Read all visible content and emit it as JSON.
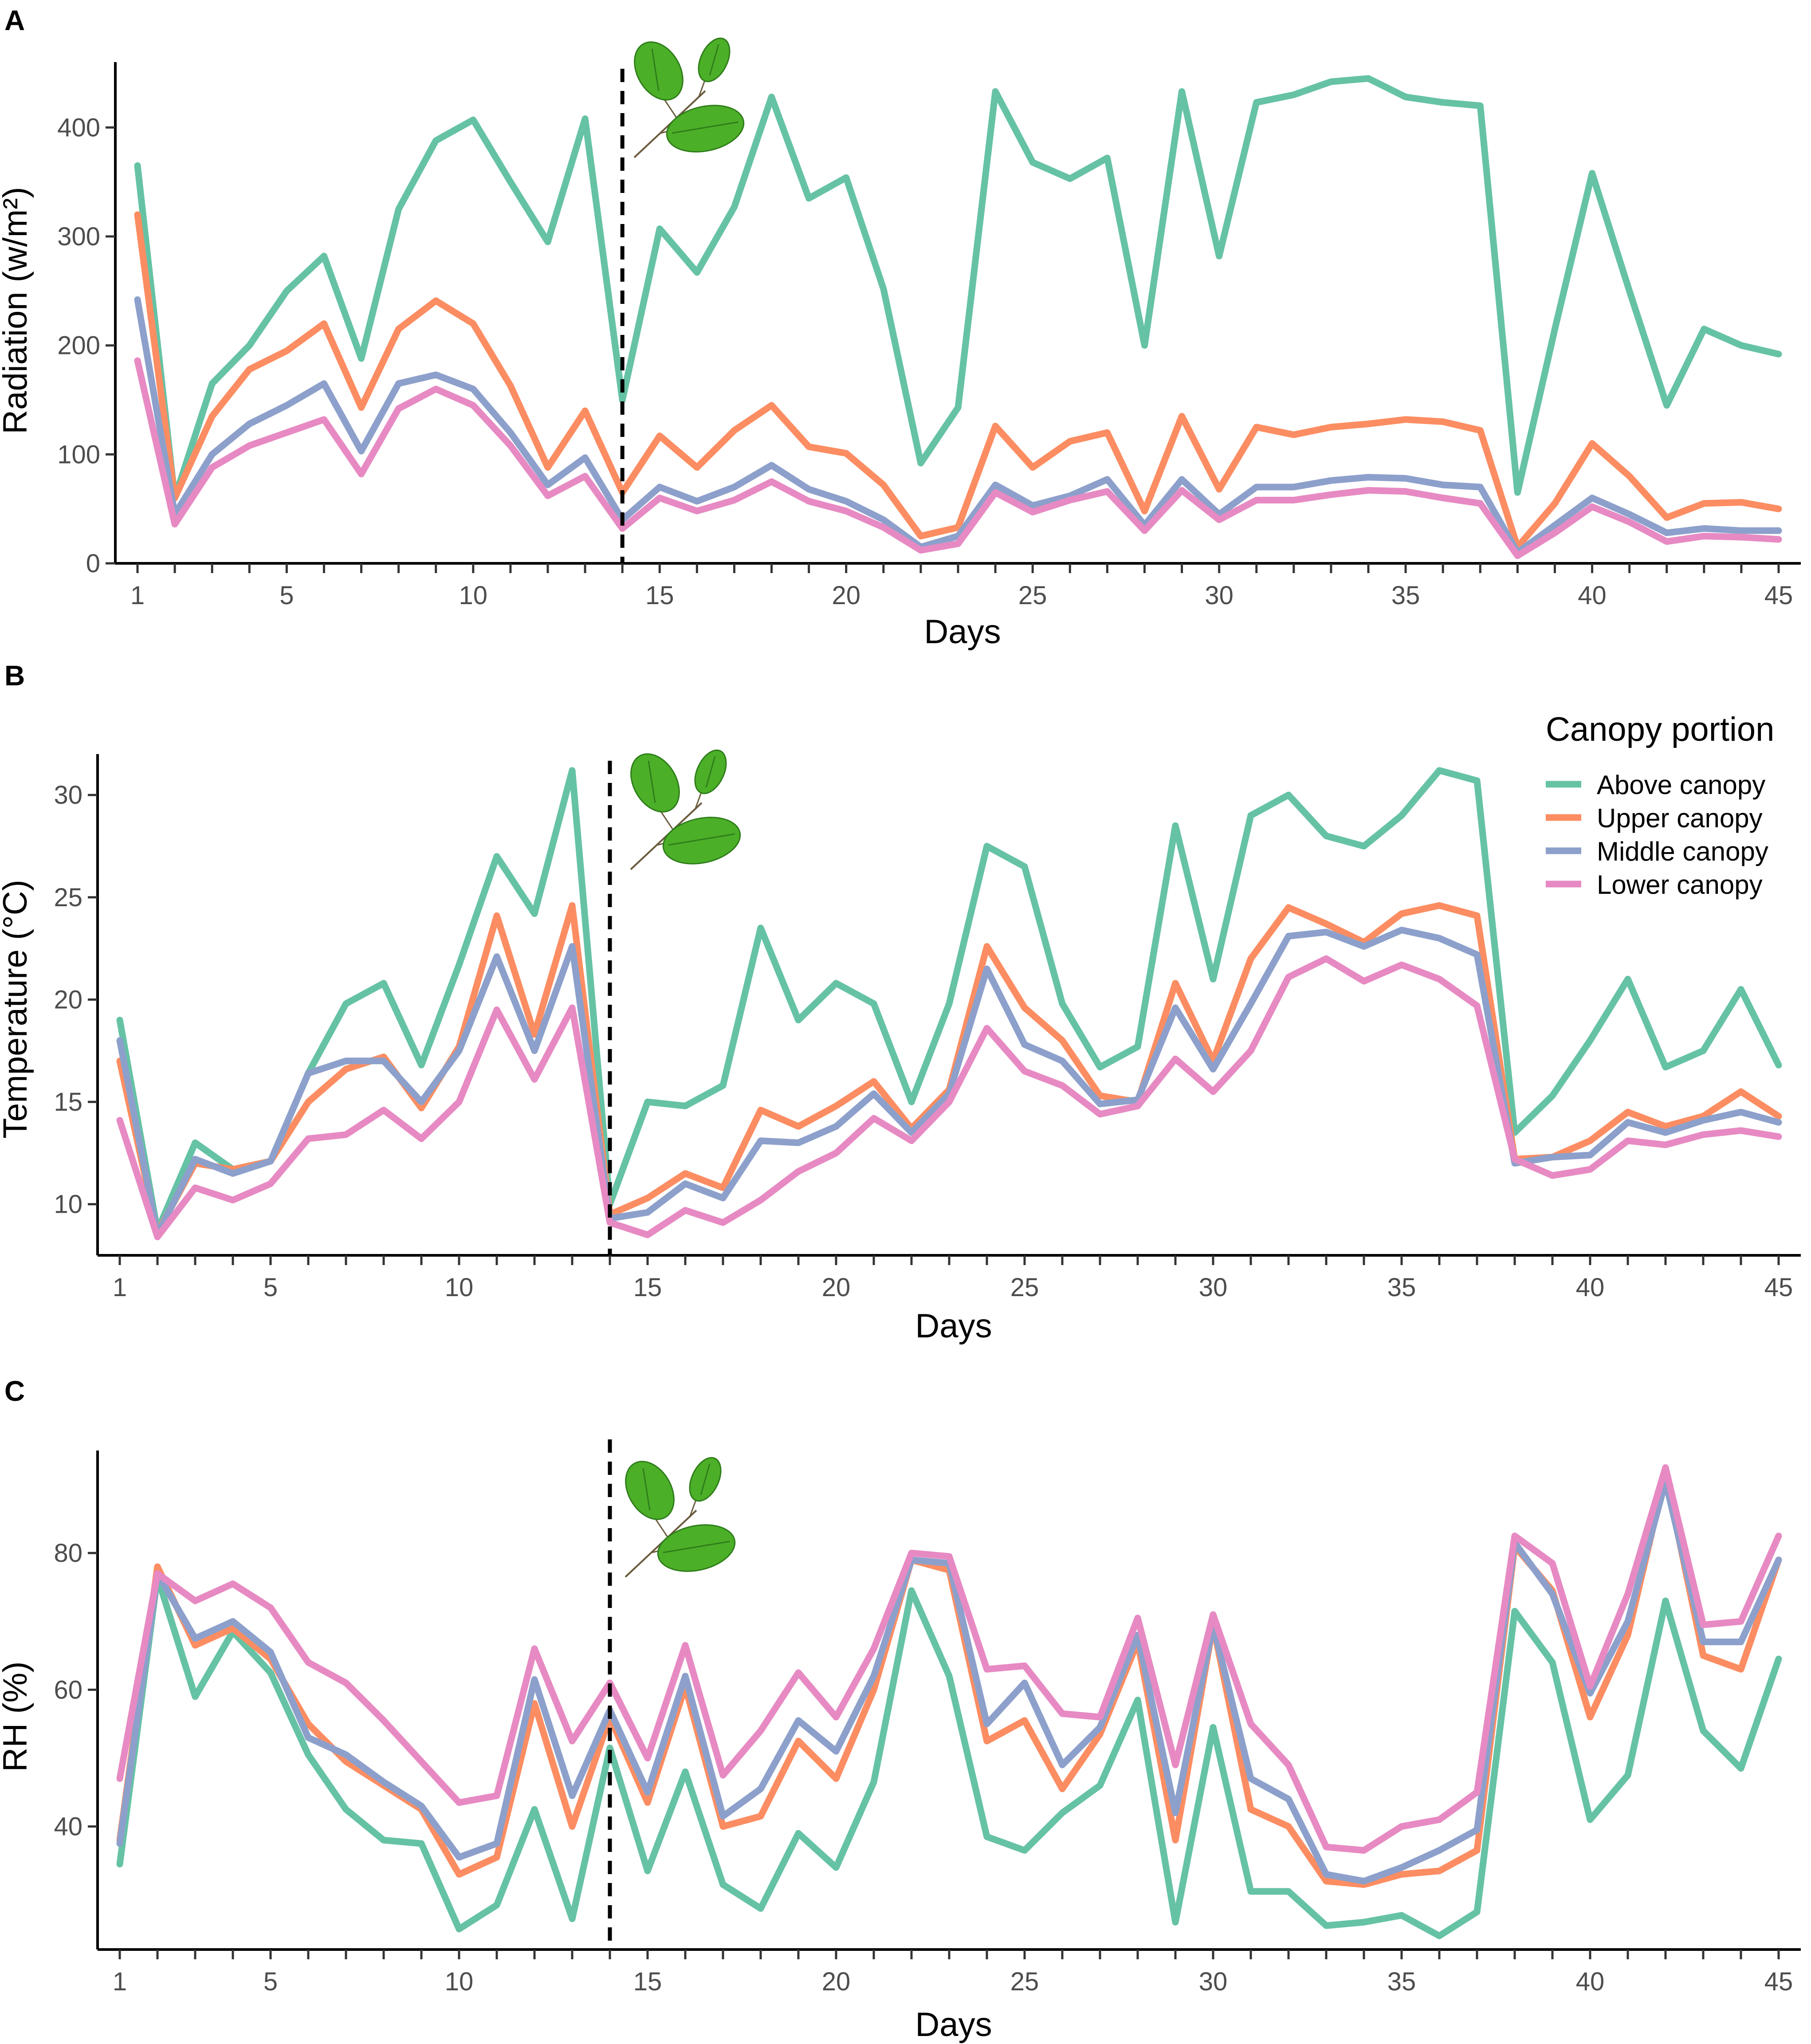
{
  "chart_data": [
    {
      "panel": "A",
      "type": "line",
      "xlabel": "Days",
      "ylabel": "Radiation (w/m²)",
      "xlim": [
        1,
        45
      ],
      "ylim": [
        0,
        460
      ],
      "yticks": [
        0,
        100,
        200,
        300,
        400
      ],
      "xticks": [
        1,
        5,
        10,
        15,
        20,
        25,
        30,
        35,
        40,
        45
      ],
      "vline": 14,
      "series": [
        {
          "name": "Above canopy",
          "color": "#66C2A5",
          "values": [
            365,
            60,
            165,
            200,
            250,
            282,
            188,
            325,
            388,
            407,
            350,
            295,
            408,
            150,
            307,
            267,
            327,
            428,
            335,
            354,
            252,
            92,
            143,
            433,
            368,
            353,
            372,
            200,
            433,
            282,
            423,
            430,
            442,
            445,
            428,
            423,
            420,
            65,
            215,
            358,
            250,
            145,
            215,
            200,
            192
          ]
        },
        {
          "name": "Upper canopy",
          "color": "#FC8D62",
          "values": [
            320,
            60,
            135,
            178,
            195,
            220,
            143,
            215,
            241,
            220,
            163,
            88,
            140,
            65,
            117,
            88,
            122,
            145,
            107,
            101,
            72,
            25,
            33,
            126,
            88,
            112,
            120,
            48,
            135,
            68,
            125,
            118,
            125,
            128,
            132,
            130,
            122,
            15,
            55,
            110,
            80,
            42,
            55,
            56,
            50
          ]
        },
        {
          "name": "Middle canopy",
          "color": "#8DA0CB",
          "values": [
            242,
            45,
            100,
            128,
            145,
            165,
            103,
            165,
            173,
            160,
            120,
            72,
            97,
            40,
            70,
            57,
            70,
            90,
            68,
            57,
            40,
            15,
            25,
            72,
            53,
            62,
            77,
            35,
            77,
            45,
            70,
            70,
            76,
            79,
            78,
            72,
            70,
            10,
            35,
            60,
            45,
            28,
            32,
            30,
            30
          ]
        },
        {
          "name": "Lower canopy",
          "color": "#E78AC3",
          "values": [
            186,
            36,
            88,
            108,
            120,
            132,
            82,
            142,
            160,
            145,
            108,
            62,
            80,
            32,
            60,
            48,
            58,
            75,
            57,
            48,
            33,
            12,
            18,
            65,
            47,
            58,
            66,
            30,
            67,
            40,
            58,
            58,
            63,
            67,
            66,
            60,
            55,
            7,
            28,
            52,
            38,
            20,
            25,
            24,
            22
          ]
        }
      ]
    },
    {
      "panel": "B",
      "type": "line",
      "xlabel": "Days",
      "ylabel": "Temperature (°C)",
      "xlim": [
        1,
        45
      ],
      "ylim": [
        7.5,
        32
      ],
      "yticks": [
        10,
        15,
        20,
        25,
        30
      ],
      "xticks": [
        1,
        5,
        10,
        15,
        20,
        25,
        30,
        35,
        40,
        45
      ],
      "vline": 14,
      "series": [
        {
          "name": "Above canopy",
          "color": "#66C2A5",
          "values": [
            19.0,
            8.7,
            13.0,
            11.7,
            12.1,
            16.4,
            19.8,
            20.8,
            16.8,
            21.7,
            27.0,
            24.2,
            31.2,
            10.0,
            15.0,
            14.8,
            15.8,
            23.5,
            19.0,
            20.8,
            19.8,
            15.0,
            19.8,
            27.5,
            26.5,
            19.8,
            16.7,
            17.7,
            28.5,
            21.0,
            29.0,
            30.0,
            28.0,
            27.5,
            29.0,
            31.2,
            30.7,
            13.5,
            15.3,
            18.0,
            21.0,
            16.7,
            17.5,
            20.5,
            16.8
          ]
        },
        {
          "name": "Upper canopy",
          "color": "#FC8D62",
          "values": [
            17.0,
            8.6,
            12.0,
            11.7,
            12.1,
            15.0,
            16.6,
            17.2,
            14.7,
            17.7,
            24.1,
            18.3,
            24.6,
            9.5,
            10.3,
            11.5,
            10.8,
            14.6,
            13.8,
            14.8,
            16.0,
            13.7,
            15.6,
            22.6,
            19.6,
            18.0,
            15.3,
            15.0,
            20.8,
            17.0,
            22.0,
            24.5,
            23.7,
            22.8,
            24.2,
            24.6,
            24.1,
            12.2,
            12.3,
            13.1,
            14.5,
            13.8,
            14.3,
            15.5,
            14.3
          ]
        },
        {
          "name": "Middle canopy",
          "color": "#8DA0CB",
          "values": [
            18.0,
            8.5,
            12.2,
            11.5,
            12.1,
            16.4,
            17.0,
            17.0,
            15.0,
            17.5,
            22.1,
            17.5,
            22.6,
            9.3,
            9.6,
            11.0,
            10.3,
            13.1,
            13.0,
            13.8,
            15.4,
            13.5,
            15.4,
            21.5,
            17.8,
            17.0,
            14.9,
            15.1,
            19.6,
            16.6,
            19.8,
            23.1,
            23.3,
            22.6,
            23.4,
            23.0,
            22.2,
            12.0,
            12.3,
            12.4,
            14.0,
            13.5,
            14.1,
            14.5,
            14.0
          ]
        },
        {
          "name": "Lower canopy",
          "color": "#E78AC3",
          "values": [
            14.1,
            8.4,
            10.8,
            10.2,
            11.0,
            13.2,
            13.4,
            14.6,
            13.2,
            15.0,
            19.5,
            16.1,
            19.6,
            9.1,
            8.5,
            9.7,
            9.1,
            10.2,
            11.6,
            12.5,
            14.2,
            13.1,
            15.0,
            18.6,
            16.5,
            15.8,
            14.4,
            14.8,
            17.1,
            15.5,
            17.5,
            21.1,
            22.0,
            20.9,
            21.7,
            21.0,
            19.7,
            12.2,
            11.4,
            11.7,
            13.1,
            12.9,
            13.4,
            13.6,
            13.3
          ]
        }
      ]
    },
    {
      "panel": "C",
      "type": "line",
      "xlabel": "Days",
      "ylabel": "RH (%)",
      "xlim": [
        1,
        45
      ],
      "ylim": [
        22,
        95
      ],
      "yticks": [
        40,
        60,
        80
      ],
      "xticks": [
        1,
        5,
        10,
        15,
        20,
        25,
        30,
        35,
        40,
        45
      ],
      "vline": 14,
      "series": [
        {
          "name": "Above canopy",
          "color": "#66C2A5",
          "values": [
            34.5,
            76.5,
            59.0,
            68.5,
            62.5,
            50.5,
            42.5,
            38.0,
            37.5,
            25.0,
            28.5,
            42.5,
            26.5,
            51.5,
            33.5,
            48.0,
            31.5,
            28.0,
            39.0,
            34.0,
            46.5,
            74.5,
            62.0,
            38.5,
            36.5,
            42.0,
            46.0,
            58.5,
            26.0,
            54.5,
            30.5,
            30.5,
            25.5,
            26.0,
            27.0,
            24.0,
            27.5,
            71.5,
            64.0,
            41.0,
            47.5,
            73.0,
            54.0,
            48.5,
            64.5
          ]
        },
        {
          "name": "Upper canopy",
          "color": "#FC8D62",
          "values": [
            38.0,
            78.0,
            66.5,
            69.0,
            64.5,
            55.0,
            49.5,
            46.0,
            42.5,
            33.0,
            35.5,
            58.0,
            40.0,
            56.0,
            43.5,
            60.5,
            40.0,
            41.5,
            52.5,
            47.0,
            60.0,
            79.0,
            77.5,
            52.5,
            55.5,
            45.5,
            53.5,
            67.0,
            38.0,
            69.5,
            42.5,
            40.0,
            32.0,
            31.5,
            33.0,
            33.5,
            36.5,
            81.0,
            74.5,
            56.0,
            68.0,
            91.5,
            65.0,
            63.0,
            79.0
          ]
        },
        {
          "name": "Middle canopy",
          "color": "#8DA0CB",
          "values": [
            37.5,
            77.0,
            67.5,
            70.0,
            65.5,
            53.0,
            50.5,
            46.5,
            43.0,
            35.5,
            37.5,
            61.5,
            44.5,
            57.0,
            45.0,
            62.0,
            41.5,
            45.5,
            55.5,
            51.0,
            62.0,
            79.0,
            78.5,
            55.0,
            61.0,
            49.0,
            54.5,
            68.0,
            42.0,
            69.5,
            47.0,
            44.0,
            33.0,
            32.0,
            34.0,
            36.5,
            39.5,
            81.5,
            74.0,
            59.5,
            70.0,
            90.5,
            67.0,
            67.0,
            79.0
          ]
        },
        {
          "name": "Lower canopy",
          "color": "#E78AC3",
          "values": [
            47.0,
            77.0,
            73.0,
            75.5,
            72.0,
            64.0,
            61.0,
            55.5,
            49.5,
            43.5,
            44.5,
            66.0,
            52.5,
            61.0,
            50.0,
            66.5,
            47.5,
            54.0,
            62.5,
            56.0,
            66.0,
            80.0,
            79.5,
            63.0,
            63.5,
            56.5,
            56.0,
            70.5,
            49.0,
            71.0,
            55.0,
            49.0,
            37.0,
            36.5,
            40.0,
            41.0,
            45.0,
            82.5,
            78.5,
            60.5,
            74.0,
            92.5,
            69.5,
            70.0,
            82.5
          ]
        }
      ]
    }
  ],
  "legend": {
    "title": "Canopy portion",
    "entries": [
      {
        "label": "Above canopy",
        "color": "#66C2A5"
      },
      {
        "label": "Upper canopy",
        "color": "#FC8D62"
      },
      {
        "label": "Middle canopy",
        "color": "#8DA0CB"
      },
      {
        "label": "Lower canopy",
        "color": "#E78AC3"
      }
    ]
  },
  "colors": {
    "leaf": "#4CAF28",
    "leaf_dark": "#2E7D1A",
    "twig": "#6B5B3E"
  }
}
